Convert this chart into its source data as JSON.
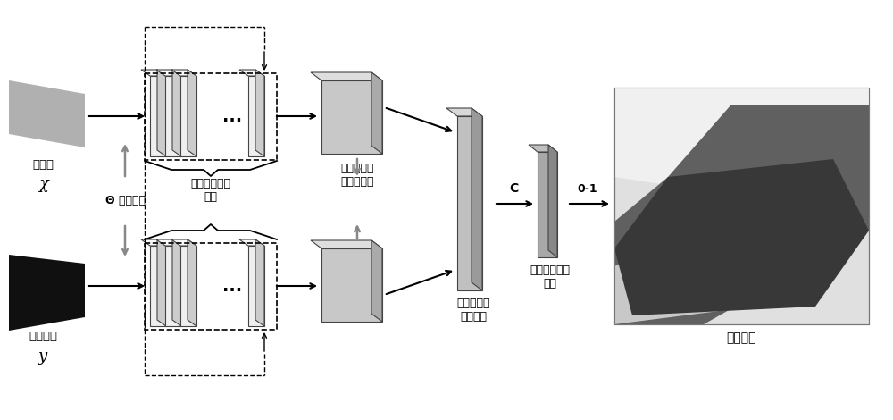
{
  "bg_color": "#ffffff",
  "labels": {
    "source_cloud_line1": "源点云",
    "source_cloud_italic": "χ",
    "target_cloud_line1": "目标点云",
    "target_cloud_italic": "y",
    "weight_share": "Θ 权值共享",
    "feature_extract_line1": "特征融合提取",
    "feature_extract_line2": "模块",
    "feature_desc_line1": "特征描述子",
    "feature_desc_line2": "向量归一化",
    "nn_match_line1": "最近邻特征",
    "nn_match_line2": "匹配模块",
    "prob_match_line1": "概率匹配对应",
    "prob_match_line2": "模块",
    "match_output": "匹配输出",
    "label_C": "C",
    "label_01": "0-1"
  }
}
